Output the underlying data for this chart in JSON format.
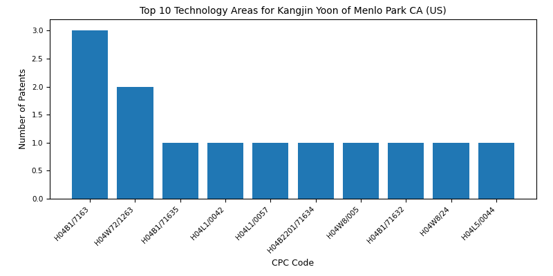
{
  "title": "Top 10 Technology Areas for Kangjin Yoon of Menlo Park CA (US)",
  "xlabel": "CPC Code",
  "ylabel": "Number of Patents",
  "categories": [
    "H04B1/7163",
    "H04W72/1263",
    "H04B1/71635",
    "H04L1/0042",
    "H04L1/0057",
    "H04B2201/71634",
    "H04W8/005",
    "H04B1/71632",
    "H04W8/24",
    "H04L5/0044"
  ],
  "values": [
    3,
    2,
    1,
    1,
    1,
    1,
    1,
    1,
    1,
    1
  ],
  "bar_color": "#2077b4",
  "ylim": [
    0,
    3.2
  ],
  "yticks": [
    0.0,
    0.5,
    1.0,
    1.5,
    2.0,
    2.5,
    3.0
  ],
  "figsize": [
    8.0,
    4.0
  ],
  "dpi": 100,
  "title_fontsize": 10,
  "axis_label_fontsize": 9,
  "tick_fontsize": 7.5
}
